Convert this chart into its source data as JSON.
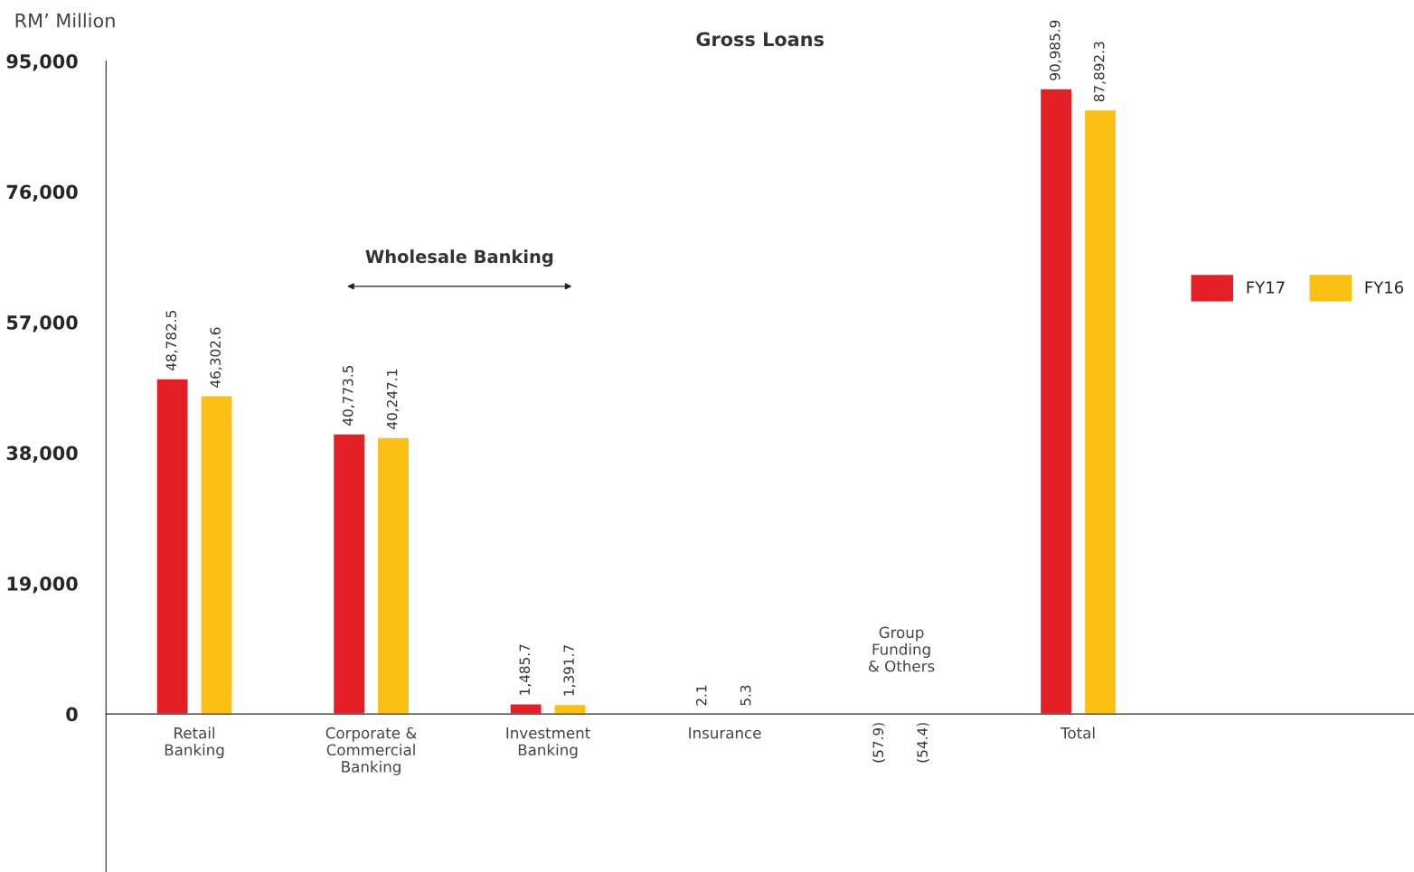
{
  "chart_data": {
    "type": "bar",
    "title": "Gross Loans",
    "ylabel": "RM’ Million",
    "categories": [
      "Retail\nBanking",
      "Corporate &\nCommercial\nBanking",
      "Investment\nBanking",
      "Insurance",
      "Group\nFunding\n& Others",
      "Total"
    ],
    "series": [
      {
        "name": "FY17",
        "color": "#e41f26",
        "values": [
          48782.5,
          40773.5,
          1485.7,
          2.1,
          -57.9,
          90985.9
        ],
        "value_labels": [
          "48,782.5",
          "40,773.5",
          "1,485.7",
          "2.1",
          "(57.9)",
          "90,985.9"
        ]
      },
      {
        "name": "FY16",
        "color": "#fcbf14",
        "values": [
          46302.6,
          40247.1,
          1391.7,
          5.3,
          -54.4,
          87892.3
        ],
        "value_labels": [
          "46,302.6",
          "40,247.1",
          "1,391.7",
          "5.3",
          "(54.4)",
          "87,892.3"
        ]
      }
    ],
    "ylim": [
      -23000,
      95000
    ],
    "yticks": [
      {
        "value": 0,
        "label": "0"
      },
      {
        "value": 19000,
        "label": "19,000"
      },
      {
        "value": 38000,
        "label": "38,000"
      },
      {
        "value": 57000,
        "label": "57,000"
      },
      {
        "value": 76000,
        "label": "76,000"
      },
      {
        "value": 95000,
        "label": "95,000"
      }
    ],
    "annotations": [
      "Wholesale Banking"
    ],
    "legend": "right",
    "grid": false
  }
}
